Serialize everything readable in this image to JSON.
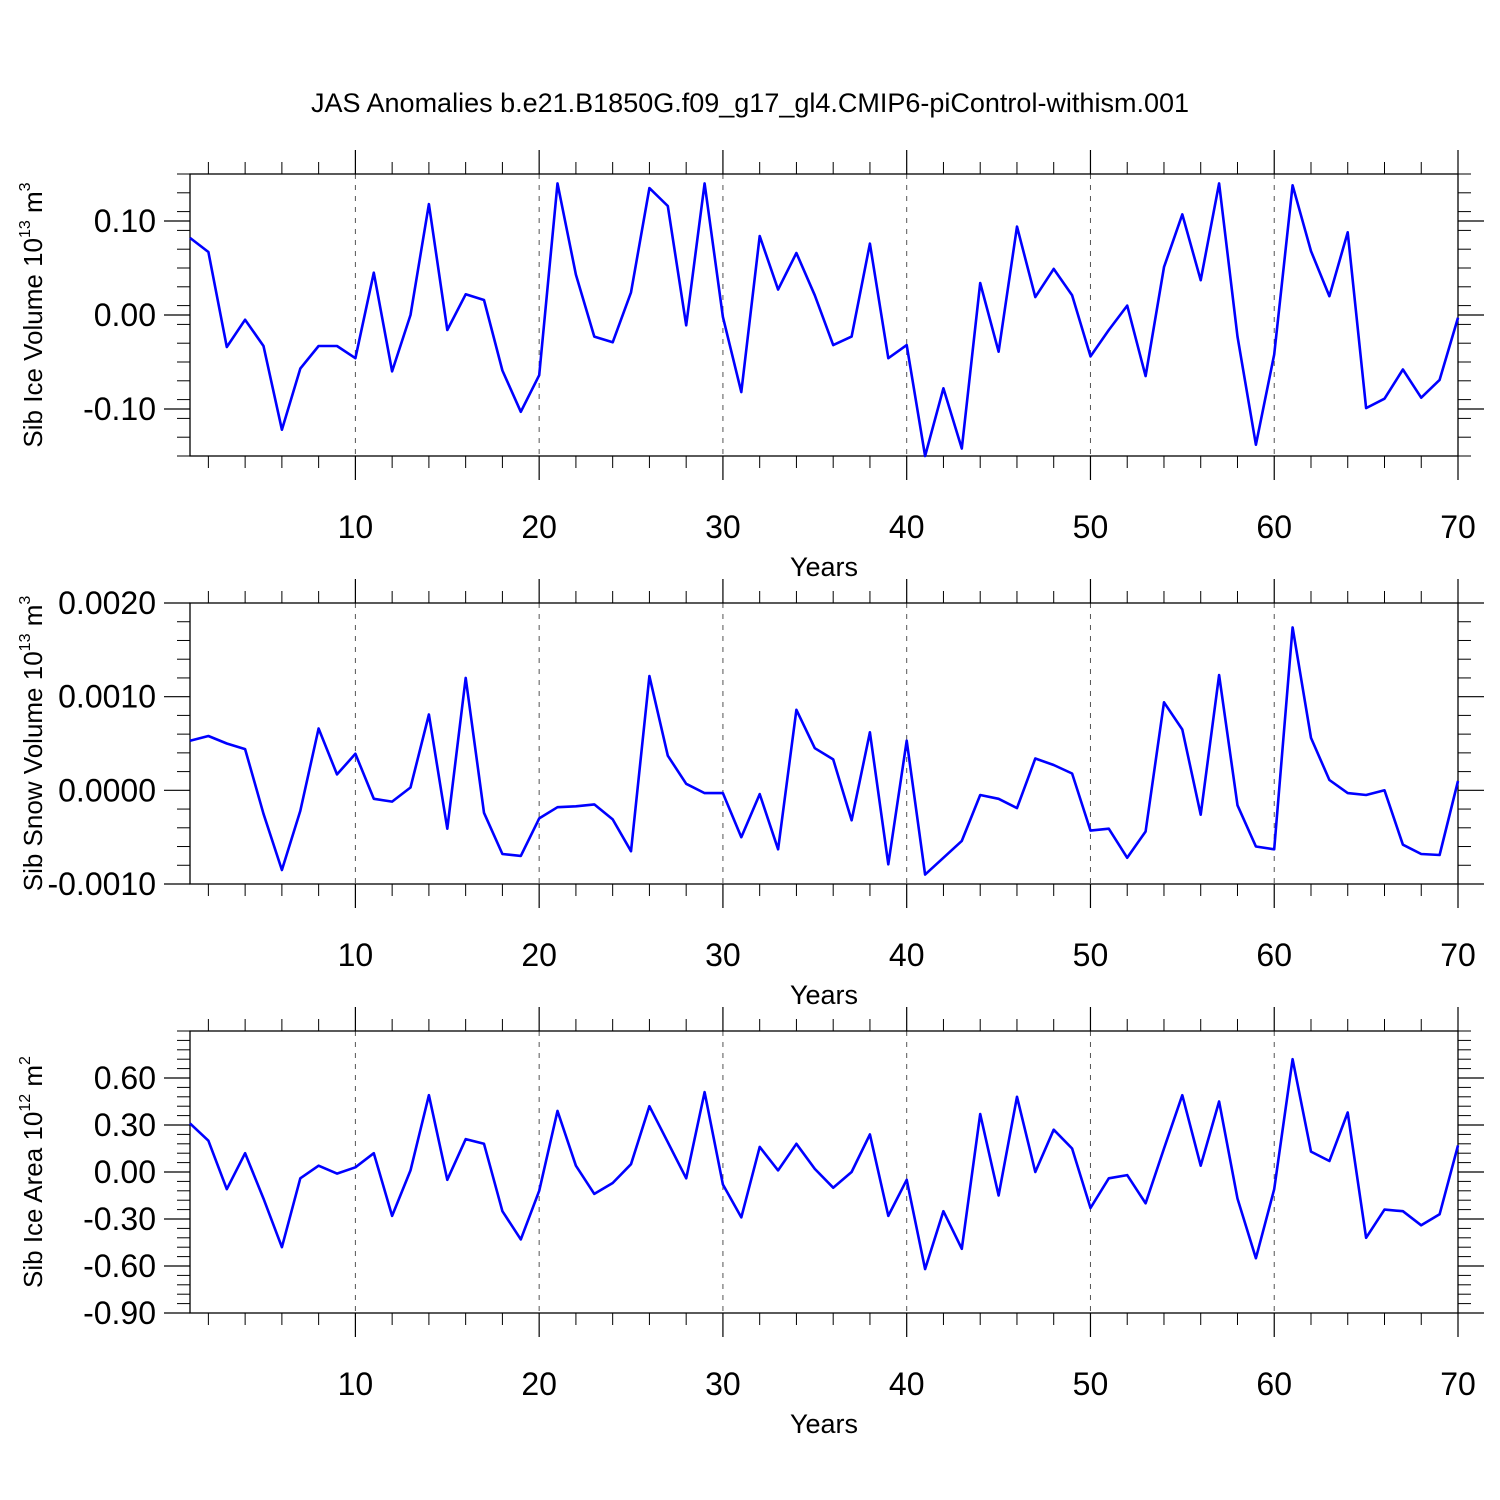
{
  "chart_data": [
    {
      "type": "line",
      "title": "JAS Anomalies b.e21.B1850G.f09_g17_gl4.CMIP6-piControl-withism.001",
      "xlabel": "Years",
      "ylabel_main": "Sib Ice Volume 10",
      "ylabel_exp": "13",
      "ylabel_unit": " m",
      "ylabel_unit_exp": "3",
      "xlim": [
        1,
        70
      ],
      "ylim": [
        -0.15,
        0.15
      ],
      "xticks": [
        "10",
        "20",
        "30",
        "40",
        "50",
        "60",
        "70"
      ],
      "yticks": [
        "0.10",
        "0.00",
        "-0.10"
      ],
      "ytick_values": [
        0.1,
        0.0,
        -0.1
      ],
      "line_color": "#0000ff",
      "x": [
        1,
        2,
        3,
        4,
        5,
        6,
        7,
        8,
        9,
        10,
        11,
        12,
        13,
        14,
        15,
        16,
        17,
        18,
        19,
        20,
        21,
        22,
        23,
        24,
        25,
        26,
        27,
        28,
        29,
        30,
        31,
        32,
        33,
        34,
        35,
        36,
        37,
        38,
        39,
        40,
        41,
        42,
        43,
        44,
        45,
        46,
        47,
        48,
        49,
        50,
        51,
        52,
        53,
        54,
        55,
        56,
        57,
        58,
        59,
        60,
        61,
        62,
        63,
        64,
        65,
        66,
        67,
        68,
        69,
        70
      ],
      "values": [
        0.082,
        0.067,
        -0.034,
        -0.005,
        -0.033,
        -0.122,
        -0.057,
        -0.033,
        -0.033,
        -0.046,
        0.045,
        -0.06,
        0.0,
        0.118,
        -0.016,
        0.022,
        0.016,
        -0.059,
        -0.103,
        -0.064,
        0.14,
        0.043,
        -0.023,
        -0.029,
        0.024,
        0.135,
        0.116,
        -0.011,
        0.14,
        -0.002,
        -0.082,
        0.084,
        0.027,
        0.066,
        0.021,
        -0.032,
        -0.023,
        0.076,
        -0.046,
        -0.032,
        -0.15,
        -0.078,
        -0.142,
        0.034,
        -0.039,
        0.094,
        0.019,
        0.049,
        0.021,
        -0.044,
        -0.016,
        0.01,
        -0.065,
        0.051,
        0.107,
        0.037,
        0.14,
        -0.023,
        -0.138,
        -0.042,
        0.138,
        0.068,
        0.02,
        0.088,
        -0.099,
        -0.089,
        -0.058,
        -0.088,
        -0.069,
        -0.003
      ]
    },
    {
      "type": "line",
      "xlabel": "Years",
      "ylabel_main": "Sib Snow Volume 10",
      "ylabel_exp": "13",
      "ylabel_unit": " m",
      "ylabel_unit_exp": "3",
      "xlim": [
        1,
        70
      ],
      "ylim": [
        -0.001,
        0.002
      ],
      "xticks": [
        "10",
        "20",
        "30",
        "40",
        "50",
        "60",
        "70"
      ],
      "yticks": [
        "0.0020",
        "0.0010",
        "0.0000",
        "-0.0010"
      ],
      "ytick_values": [
        0.002,
        0.001,
        0.0,
        -0.001
      ],
      "line_color": "#0000ff",
      "x": [
        1,
        2,
        3,
        4,
        5,
        6,
        7,
        8,
        9,
        10,
        11,
        12,
        13,
        14,
        15,
        16,
        17,
        18,
        19,
        20,
        21,
        22,
        23,
        24,
        25,
        26,
        27,
        28,
        29,
        30,
        31,
        32,
        33,
        34,
        35,
        36,
        37,
        38,
        39,
        40,
        41,
        42,
        43,
        44,
        45,
        46,
        47,
        48,
        49,
        50,
        51,
        52,
        53,
        54,
        55,
        56,
        57,
        58,
        59,
        60,
        61,
        62,
        63,
        64,
        65,
        66,
        67,
        68,
        69,
        70
      ],
      "values": [
        0.00053,
        0.00058,
        0.0005,
        0.00044,
        -0.00025,
        -0.00085,
        -0.00022,
        0.00066,
        0.00017,
        0.00039,
        -9e-05,
        -0.00012,
        3e-05,
        0.00081,
        -0.00041,
        0.0012,
        -0.00024,
        -0.00068,
        -0.0007,
        -0.0003,
        -0.00018,
        -0.00017,
        -0.00015,
        -0.00031,
        -0.00065,
        0.00122,
        0.00037,
        7e-05,
        -3e-05,
        -3e-05,
        -0.0005,
        -4e-05,
        -0.00063,
        0.00086,
        0.00045,
        0.00033,
        -0.00032,
        0.00062,
        -0.00079,
        0.00053,
        -0.0009,
        -0.00072,
        -0.00054,
        -5e-05,
        -9e-05,
        -0.00019,
        0.00034,
        0.00027,
        0.00018,
        -0.00043,
        -0.00041,
        -0.00072,
        -0.00044,
        0.00094,
        0.00065,
        -0.00026,
        0.00123,
        -0.00016,
        -0.0006,
        -0.00063,
        0.00174,
        0.00056,
        0.00011,
        -3e-05,
        -5e-05,
        0.0,
        -0.00058,
        -0.00068,
        -0.00069,
        0.0001
      ]
    },
    {
      "type": "line",
      "xlabel": "Years",
      "ylabel_main": "Sib Ice Area 10",
      "ylabel_exp": "12",
      "ylabel_unit": " m",
      "ylabel_unit_exp": "2",
      "xlim": [
        1,
        70
      ],
      "ylim": [
        -0.9,
        0.9
      ],
      "xticks": [
        "10",
        "20",
        "30",
        "40",
        "50",
        "60",
        "70"
      ],
      "yticks": [
        "0.60",
        "0.30",
        "0.00",
        "-0.30",
        "-0.60",
        "-0.90"
      ],
      "ytick_values": [
        0.6,
        0.3,
        0.0,
        -0.3,
        -0.6,
        -0.9
      ],
      "line_color": "#0000ff",
      "x": [
        1,
        2,
        3,
        4,
        5,
        6,
        7,
        8,
        9,
        10,
        11,
        12,
        13,
        14,
        15,
        16,
        17,
        18,
        19,
        20,
        21,
        22,
        23,
        24,
        25,
        26,
        27,
        28,
        29,
        30,
        31,
        32,
        33,
        34,
        35,
        36,
        37,
        38,
        39,
        40,
        41,
        42,
        43,
        44,
        45,
        46,
        47,
        48,
        49,
        50,
        51,
        52,
        53,
        54,
        55,
        56,
        57,
        58,
        59,
        60,
        61,
        62,
        63,
        64,
        65,
        66,
        67,
        68,
        69,
        70
      ],
      "values": [
        0.31,
        0.2,
        -0.11,
        0.12,
        -0.17,
        -0.48,
        -0.04,
        0.04,
        -0.01,
        0.03,
        0.12,
        -0.28,
        0.01,
        0.49,
        -0.05,
        0.21,
        0.18,
        -0.25,
        -0.43,
        -0.12,
        0.39,
        0.04,
        -0.14,
        -0.07,
        0.05,
        0.42,
        0.19,
        -0.04,
        0.51,
        -0.08,
        -0.29,
        0.16,
        0.01,
        0.18,
        0.02,
        -0.1,
        0.0,
        0.24,
        -0.28,
        -0.05,
        -0.62,
        -0.25,
        -0.49,
        0.37,
        -0.15,
        0.48,
        0.0,
        0.27,
        0.15,
        -0.23,
        -0.04,
        -0.02,
        -0.2,
        0.15,
        0.49,
        0.04,
        0.45,
        -0.17,
        -0.55,
        -0.11,
        0.72,
        0.13,
        0.07,
        0.38,
        -0.42,
        -0.24,
        -0.25,
        -0.34,
        -0.27,
        0.17
      ]
    }
  ]
}
